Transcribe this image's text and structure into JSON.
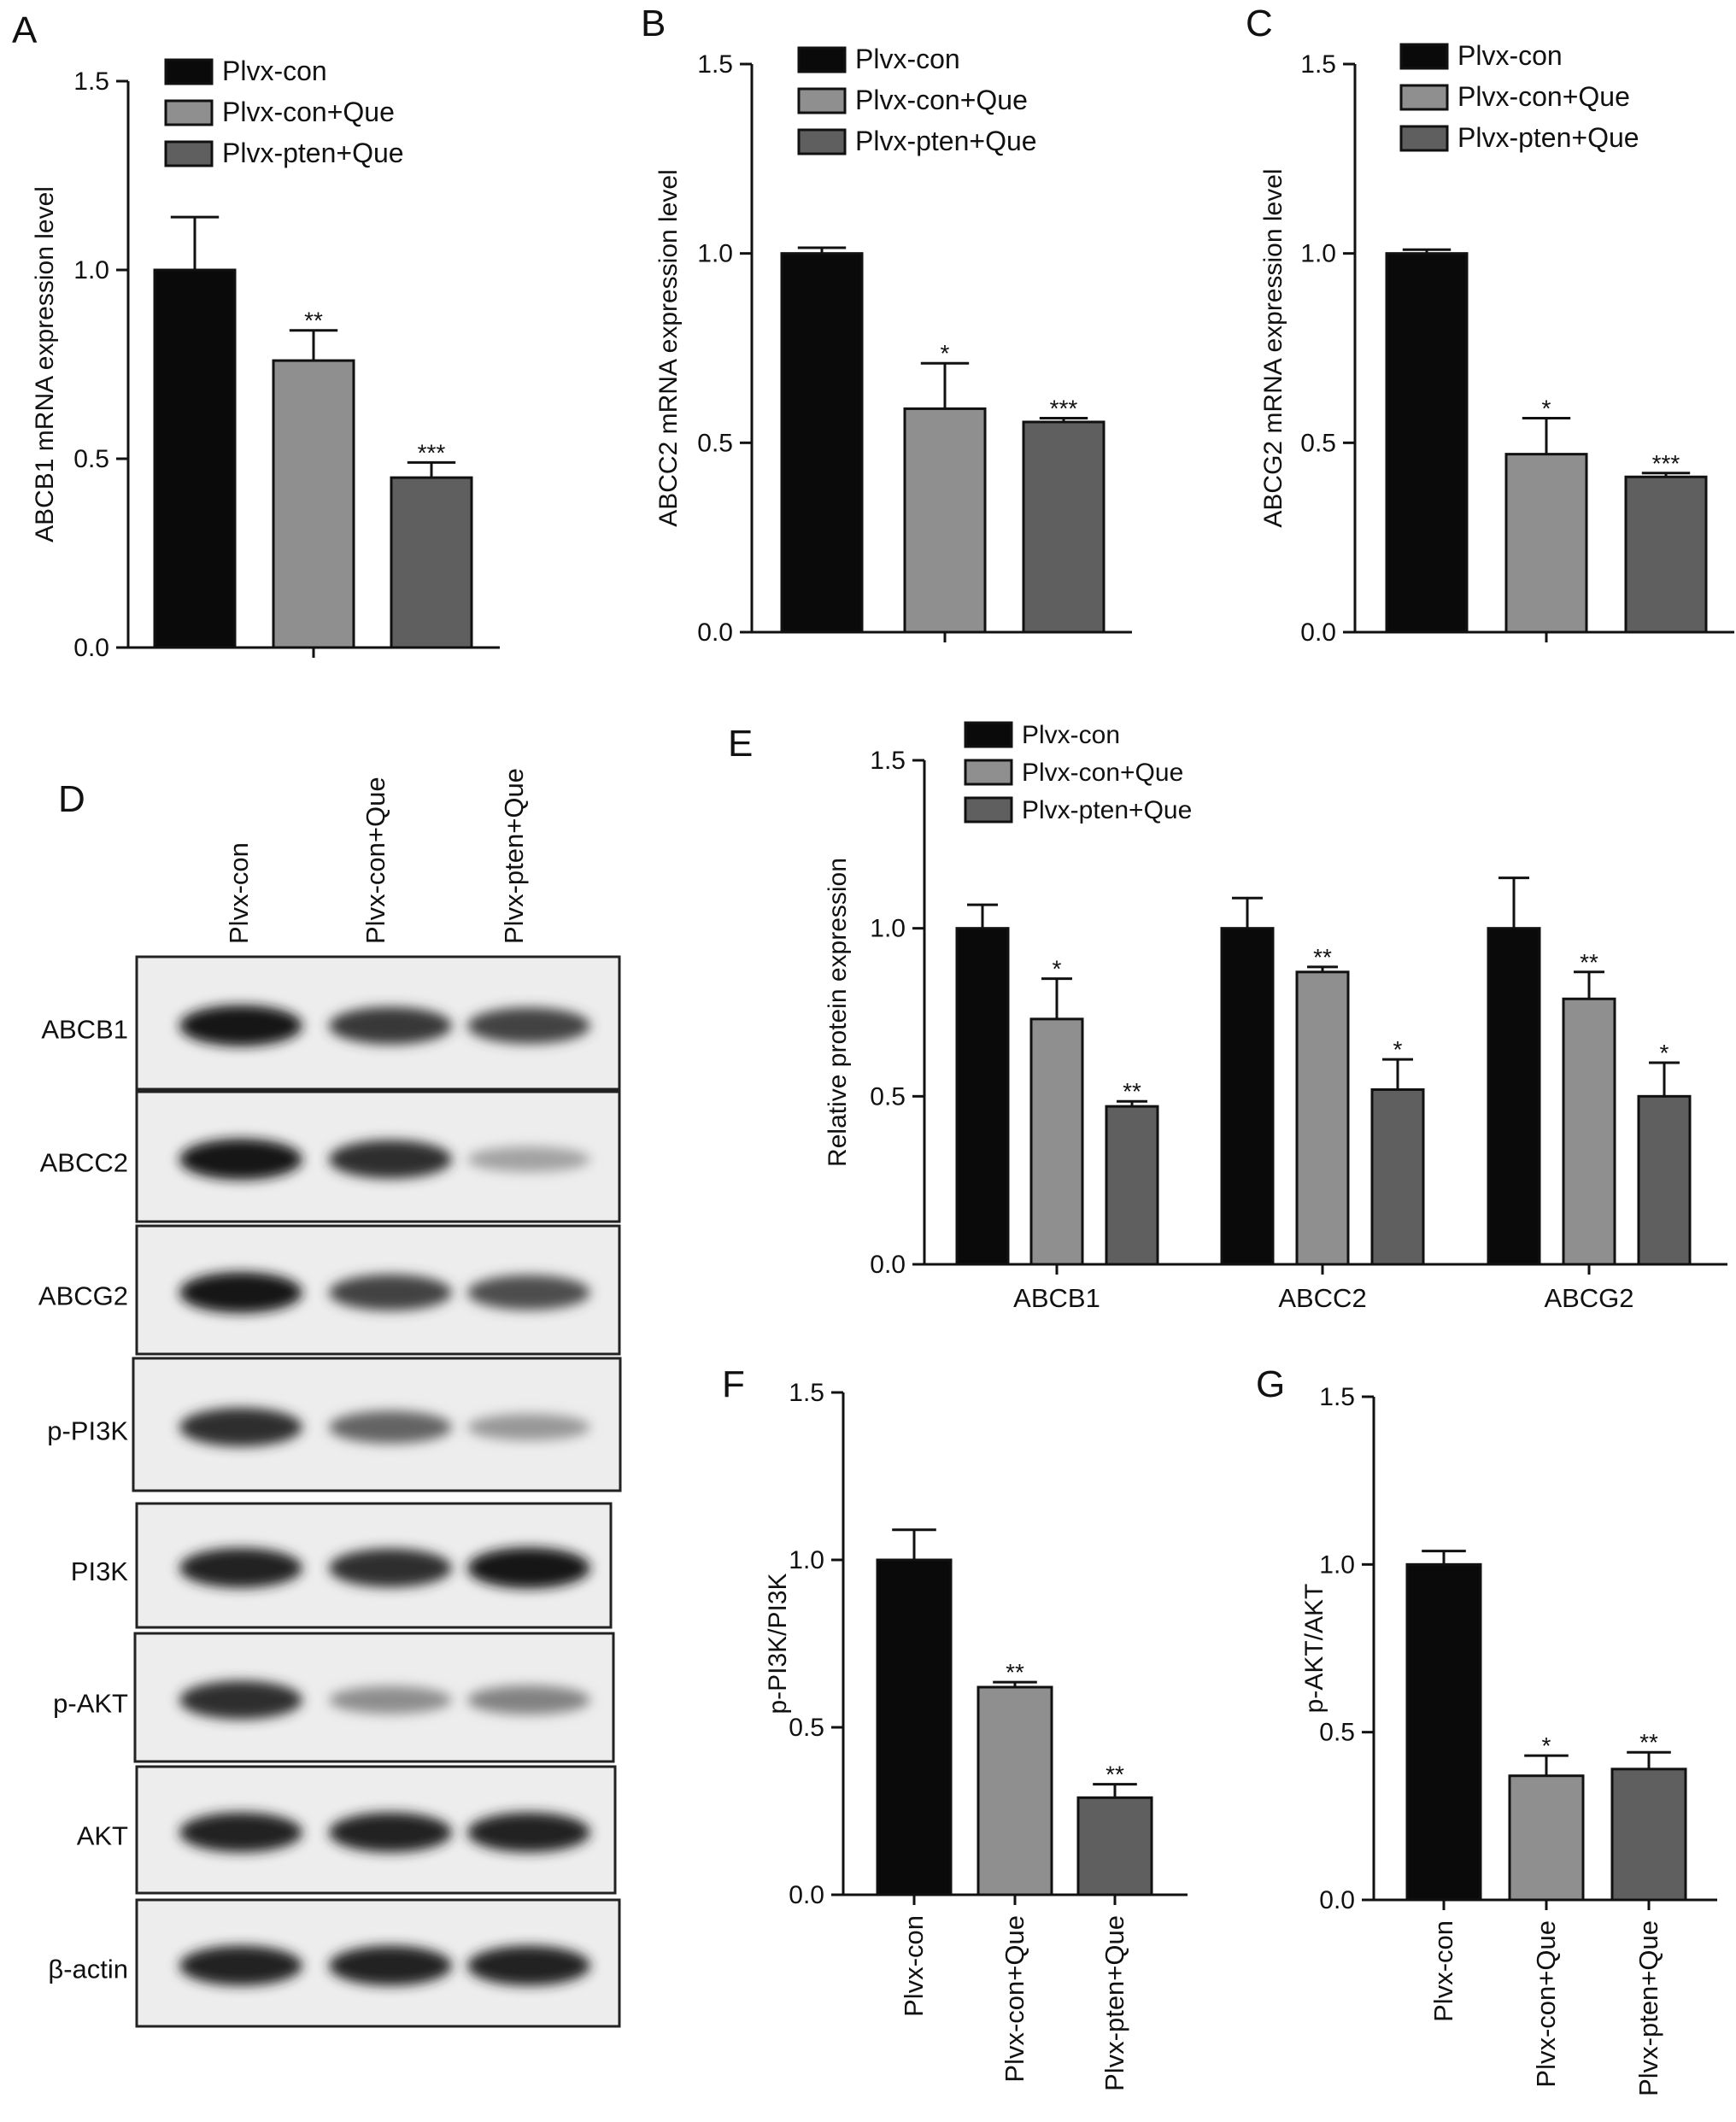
{
  "colors": {
    "Plvx-con": "#0a0a0a",
    "Plvx-con+Que": "#8f8f8f",
    "Plvx-pten+Que": "#5f5f5f",
    "axis": "#111111"
  },
  "groups": [
    "Plvx-con",
    "Plvx-con+Que",
    "Plvx-pten+Que"
  ],
  "chart_data": [
    {
      "panel": "A",
      "type": "bar",
      "title": "",
      "ylabel": "ABCB1 mRNA expression level",
      "xlabel": "",
      "ylim": [
        0,
        1.5
      ],
      "yticks": [
        "0.0",
        "0.5",
        "1.0",
        "1.5"
      ],
      "legend": "top-right",
      "series": [
        {
          "name": "Plvx-con",
          "value": 1.0,
          "error": 0.14,
          "sig": ""
        },
        {
          "name": "Plvx-con+Que",
          "value": 0.76,
          "error": 0.08,
          "sig": "**"
        },
        {
          "name": "Plvx-pten+Que",
          "value": 0.45,
          "error": 0.04,
          "sig": "***"
        }
      ]
    },
    {
      "panel": "B",
      "type": "bar",
      "title": "",
      "ylabel": "ABCC2 mRNA expression level",
      "xlabel": "",
      "ylim": [
        0,
        1.5
      ],
      "yticks": [
        "0.0",
        "0.5",
        "1.0",
        "1.5"
      ],
      "legend": "top-right",
      "series": [
        {
          "name": "Plvx-con",
          "value": 1.0,
          "error": 0.015,
          "sig": ""
        },
        {
          "name": "Plvx-con+Que",
          "value": 0.59,
          "error": 0.12,
          "sig": "*"
        },
        {
          "name": "Plvx-pten+Que",
          "value": 0.555,
          "error": 0.01,
          "sig": "***"
        }
      ]
    },
    {
      "panel": "C",
      "type": "bar",
      "title": "",
      "ylabel": "ABCG2 mRNA expression level",
      "xlabel": "",
      "ylim": [
        0,
        1.5
      ],
      "yticks": [
        "0.0",
        "0.5",
        "1.0",
        "1.5"
      ],
      "legend": "top-right",
      "series": [
        {
          "name": "Plvx-con",
          "value": 1.0,
          "error": 0.01,
          "sig": ""
        },
        {
          "name": "Plvx-con+Que",
          "value": 0.47,
          "error": 0.095,
          "sig": "*"
        },
        {
          "name": "Plvx-pten+Que",
          "value": 0.41,
          "error": 0.01,
          "sig": "***"
        }
      ]
    },
    {
      "panel": "E",
      "type": "bar",
      "title": "",
      "ylabel": "Relative protein expression",
      "xlabel": "",
      "ylim": [
        0,
        1.5
      ],
      "yticks": [
        "0.0",
        "0.5",
        "1.0",
        "1.5"
      ],
      "legend": "top-left",
      "categories": [
        "ABCB1",
        "ABCC2",
        "ABCG2"
      ],
      "series": [
        {
          "name": "Plvx-con",
          "values": [
            1.0,
            1.0,
            1.0
          ],
          "errors": [
            0.07,
            0.09,
            0.15
          ],
          "sig": [
            "",
            "",
            ""
          ]
        },
        {
          "name": "Plvx-con+Que",
          "values": [
            0.73,
            0.87,
            0.79
          ],
          "errors": [
            0.12,
            0.015,
            0.08
          ],
          "sig": [
            "*",
            "**",
            "**"
          ]
        },
        {
          "name": "Plvx-pten+Que",
          "values": [
            0.47,
            0.52,
            0.5
          ],
          "errors": [
            0.015,
            0.09,
            0.1
          ],
          "sig": [
            "**",
            "*",
            "*"
          ]
        }
      ]
    },
    {
      "panel": "F",
      "type": "bar",
      "title": "",
      "ylabel": "p-PI3K/PI3K",
      "xlabel": "",
      "ylim": [
        0,
        1.5
      ],
      "yticks": [
        "0.0",
        "0.5",
        "1.0",
        "1.5"
      ],
      "categories": [
        "Plvx-con",
        "Plvx-con+Que",
        "Plvx-pten+Que"
      ],
      "series": [
        {
          "name": "",
          "values": [
            1.0,
            0.62,
            0.29
          ],
          "errors": [
            0.09,
            0.015,
            0.04
          ],
          "sig": [
            "",
            "**",
            "**"
          ]
        }
      ]
    },
    {
      "panel": "G",
      "type": "bar",
      "title": "",
      "ylabel": "p-AKT/AKT",
      "xlabel": "",
      "ylim": [
        0,
        1.5
      ],
      "yticks": [
        "0.0",
        "0.5",
        "1.0",
        "1.5"
      ],
      "categories": [
        "Plvx-con",
        "Plvx-con+Que",
        "Plvx-pten+Que"
      ],
      "series": [
        {
          "name": "",
          "values": [
            1.0,
            0.37,
            0.39
          ],
          "errors": [
            0.04,
            0.06,
            0.05
          ],
          "sig": [
            "",
            "*",
            "**"
          ]
        }
      ]
    }
  ],
  "western_blot": {
    "panel": "D",
    "lanes": [
      "Plvx-con",
      "Plvx-con+Que",
      "Plvx-pten+Que"
    ],
    "rows": [
      {
        "label": "ABCB1",
        "intensity": [
          1.0,
          0.85,
          0.8
        ]
      },
      {
        "label": "ABCC2",
        "intensity": [
          1.0,
          0.9,
          0.35
        ]
      },
      {
        "label": "ABCG2",
        "intensity": [
          1.0,
          0.8,
          0.75
        ]
      },
      {
        "label": "p-PI3K",
        "intensity": [
          0.9,
          0.65,
          0.4
        ]
      },
      {
        "label": "PI3K",
        "intensity": [
          0.95,
          0.9,
          1.0
        ]
      },
      {
        "label": "p-AKT",
        "intensity": [
          0.9,
          0.45,
          0.5
        ]
      },
      {
        "label": "AKT",
        "intensity": [
          0.95,
          0.95,
          0.95
        ]
      },
      {
        "label": "β-actin",
        "intensity": [
          0.95,
          0.95,
          0.95
        ]
      }
    ]
  }
}
